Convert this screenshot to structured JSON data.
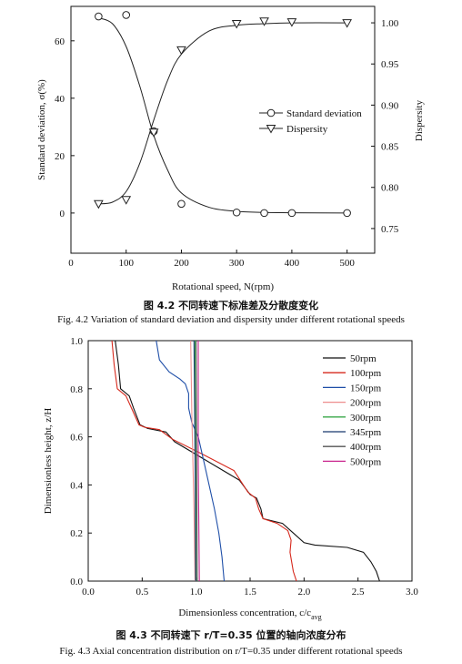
{
  "chart_data": [
    {
      "type": "scatter",
      "xlabel": "Rotational speed, N(rpm)",
      "ylabel_left": "Standard deviation, σ(%)",
      "ylabel_right": "Dispersity",
      "xlim": [
        0,
        550
      ],
      "ylim_left": [
        -14,
        72
      ],
      "ylim_right": [
        0.72,
        1.02
      ],
      "xticks": [
        "0",
        "100",
        "200",
        "300",
        "400",
        "500"
      ],
      "yticks_left": [
        "0",
        "20",
        "40",
        "60"
      ],
      "yticks_right": [
        "0.75",
        "0.80",
        "0.85",
        "0.90",
        "0.95",
        "1.00"
      ],
      "legend_position": "center-right",
      "series": [
        {
          "name": "Standard deviation",
          "axis": "left",
          "marker": "circle",
          "x": [
            50,
            100,
            150,
            200,
            300,
            350,
            400,
            500
          ],
          "y": [
            68.5,
            69,
            28.5,
            3.2,
            0.2,
            0,
            0,
            0
          ],
          "fit_x": [
            50,
            75,
            100,
            125,
            150,
            175,
            200,
            250,
            300,
            350,
            400,
            500
          ],
          "fit_y": [
            68,
            66,
            58,
            44,
            27,
            15,
            7,
            2,
            0.6,
            0.2,
            0.1,
            0
          ]
        },
        {
          "name": "Dispersity",
          "axis": "right",
          "marker": "triangle-down",
          "x": [
            50,
            100,
            150,
            200,
            300,
            350,
            400,
            500
          ],
          "y": [
            0.78,
            0.785,
            0.867,
            0.967,
            0.999,
            1.002,
            1.001,
            1.0
          ],
          "fit_x": [
            50,
            75,
            100,
            125,
            150,
            175,
            200,
            250,
            300,
            350,
            400,
            500
          ],
          "fit_y": [
            0.78,
            0.782,
            0.795,
            0.83,
            0.882,
            0.93,
            0.962,
            0.99,
            0.997,
            0.999,
            1.0,
            1.0
          ]
        }
      ]
    },
    {
      "type": "line",
      "xlabel_main": "Dimensionless concentration, c/c",
      "xlabel_sub": "avg",
      "ylabel": "Dimensionless height, z/H",
      "xlim": [
        0,
        3.0
      ],
      "ylim": [
        0,
        1.0
      ],
      "xticks": [
        "0.0",
        "0.5",
        "1.0",
        "1.5",
        "2.0",
        "2.5",
        "3.0"
      ],
      "yticks": [
        "0.0",
        "0.2",
        "0.4",
        "0.6",
        "0.8",
        "1.0"
      ],
      "legend_position": "top-right",
      "series": [
        {
          "name": "50rpm",
          "color": "#111111",
          "points": [
            [
              0.25,
              1.0
            ],
            [
              0.28,
              0.9
            ],
            [
              0.3,
              0.8
            ],
            [
              0.38,
              0.77
            ],
            [
              0.42,
              0.72
            ],
            [
              0.48,
              0.65
            ],
            [
              0.55,
              0.635
            ],
            [
              0.72,
              0.62
            ],
            [
              0.8,
              0.58
            ],
            [
              1.1,
              0.5
            ],
            [
              1.4,
              0.42
            ],
            [
              1.5,
              0.36
            ],
            [
              1.56,
              0.345
            ],
            [
              1.6,
              0.3
            ],
            [
              1.62,
              0.26
            ],
            [
              1.8,
              0.24
            ],
            [
              1.9,
              0.2
            ],
            [
              2.0,
              0.16
            ],
            [
              2.1,
              0.15
            ],
            [
              2.4,
              0.14
            ],
            [
              2.55,
              0.12
            ],
            [
              2.62,
              0.08
            ],
            [
              2.67,
              0.04
            ],
            [
              2.7,
              0.0
            ]
          ]
        },
        {
          "name": "100rpm",
          "color": "#d6281c",
          "points": [
            [
              0.22,
              1.0
            ],
            [
              0.24,
              0.9
            ],
            [
              0.27,
              0.8
            ],
            [
              0.35,
              0.77
            ],
            [
              0.4,
              0.72
            ],
            [
              0.47,
              0.65
            ],
            [
              0.52,
              0.64
            ],
            [
              0.66,
              0.63
            ],
            [
              0.78,
              0.59
            ],
            [
              1.05,
              0.53
            ],
            [
              1.35,
              0.46
            ],
            [
              1.48,
              0.37
            ],
            [
              1.55,
              0.345
            ],
            [
              1.58,
              0.3
            ],
            [
              1.62,
              0.26
            ],
            [
              1.75,
              0.24
            ],
            [
              1.85,
              0.21
            ],
            [
              1.88,
              0.17
            ],
            [
              1.87,
              0.12
            ],
            [
              1.9,
              0.04
            ],
            [
              1.93,
              0.0
            ]
          ]
        },
        {
          "name": "150rpm",
          "color": "#1f4fa8",
          "points": [
            [
              0.63,
              1.0
            ],
            [
              0.66,
              0.92
            ],
            [
              0.75,
              0.87
            ],
            [
              0.85,
              0.84
            ],
            [
              0.9,
              0.82
            ],
            [
              0.93,
              0.78
            ],
            [
              0.93,
              0.72
            ],
            [
              0.96,
              0.66
            ],
            [
              1.02,
              0.6
            ],
            [
              1.07,
              0.5
            ],
            [
              1.12,
              0.4
            ],
            [
              1.17,
              0.3
            ],
            [
              1.21,
              0.2
            ],
            [
              1.24,
              0.1
            ],
            [
              1.26,
              0.0
            ]
          ]
        },
        {
          "name": "200rpm",
          "color": "#ee8d8d",
          "points": [
            [
              0.95,
              1.0
            ],
            [
              0.96,
              0.7
            ],
            [
              0.97,
              0.5
            ],
            [
              0.98,
              0.3
            ],
            [
              0.99,
              0.0
            ]
          ]
        },
        {
          "name": "300rpm",
          "color": "#3aa84a",
          "points": [
            [
              0.99,
              1.0
            ],
            [
              0.995,
              0.5
            ],
            [
              1.0,
              0.0
            ]
          ]
        },
        {
          "name": "345rpm",
          "color": "#17376e",
          "points": [
            [
              0.98,
              1.0
            ],
            [
              0.99,
              0.5
            ],
            [
              0.995,
              0.0
            ]
          ]
        },
        {
          "name": "400rpm",
          "color": "#555555",
          "points": [
            [
              1.0,
              1.0
            ],
            [
              1.005,
              0.5
            ],
            [
              1.01,
              0.0
            ]
          ]
        },
        {
          "name": "500rpm",
          "color": "#c9278e",
          "points": [
            [
              1.02,
              1.0
            ],
            [
              1.02,
              0.5
            ],
            [
              1.03,
              0.0
            ]
          ]
        }
      ]
    }
  ],
  "captions": {
    "fig42_zh": "图 4.2   不同转速下标准差及分散度变化",
    "fig42_en": "Fig. 4.2    Variation of standard deviation and dispersity under different rotational speeds",
    "fig43_zh": "图 4.3   不同转速下 r/T=0.35 位置的轴向浓度分布",
    "fig43_en": "Fig. 4.3    Axial concentration distribution on r/T=0.35 under different rotational speeds"
  }
}
